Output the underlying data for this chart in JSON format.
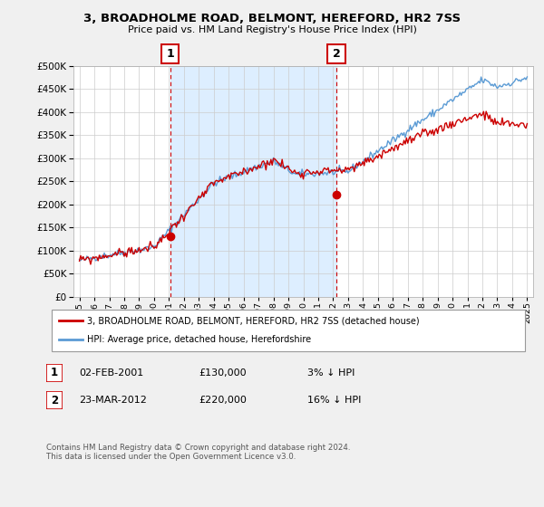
{
  "title": "3, BROADHOLME ROAD, BELMONT, HEREFORD, HR2 7SS",
  "subtitle": "Price paid vs. HM Land Registry's House Price Index (HPI)",
  "legend_line1": "3, BROADHOLME ROAD, BELMONT, HEREFORD, HR2 7SS (detached house)",
  "legend_line2": "HPI: Average price, detached house, Herefordshire",
  "transaction1_date": "02-FEB-2001",
  "transaction1_price": "£130,000",
  "transaction1_hpi": "3% ↓ HPI",
  "transaction2_date": "23-MAR-2012",
  "transaction2_price": "£220,000",
  "transaction2_hpi": "16% ↓ HPI",
  "footnote": "Contains HM Land Registry data © Crown copyright and database right 2024.\nThis data is licensed under the Open Government Licence v3.0.",
  "hpi_color": "#5b9bd5",
  "price_color": "#cc0000",
  "vline_color": "#cc0000",
  "shade_color": "#ddeeff",
  "ylim": [
    0,
    500000
  ],
  "yticks": [
    0,
    50000,
    100000,
    150000,
    200000,
    250000,
    300000,
    350000,
    400000,
    450000,
    500000
  ],
  "background_color": "#f0f0f0",
  "plot_bg_color": "#ffffff",
  "t1_x": 2001.08,
  "t1_y": 130000,
  "t2_x": 2012.21,
  "t2_y": 220000,
  "xmin": 1994.6,
  "xmax": 2025.4
}
